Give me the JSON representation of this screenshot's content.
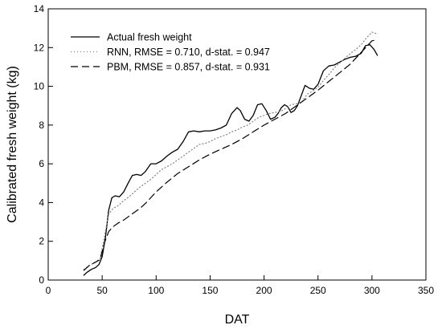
{
  "chart_data": {
    "type": "line",
    "title": "",
    "xlabel": "DAT",
    "ylabel": "Calibrated fresh weight (kg)",
    "xlim": [
      0,
      350
    ],
    "ylim": [
      0,
      14
    ],
    "xticks": [
      0,
      50,
      100,
      150,
      200,
      250,
      300,
      350
    ],
    "yticks": [
      0,
      2,
      4,
      6,
      8,
      10,
      12,
      14
    ],
    "grid": false,
    "legend_position": "top-left",
    "series": [
      {
        "name": "Actual fresh weight",
        "style": "solid",
        "color": "#000000",
        "x": [
          33,
          36,
          40,
          44,
          47,
          50,
          53,
          56,
          59,
          62,
          66,
          70,
          74,
          78,
          82,
          86,
          90,
          95,
          100,
          105,
          110,
          115,
          120,
          125,
          130,
          135,
          140,
          145,
          150,
          155,
          160,
          165,
          170,
          175,
          178,
          182,
          186,
          190,
          194,
          198,
          202,
          206,
          210,
          213,
          216,
          219,
          222,
          225,
          228,
          231,
          235,
          238,
          242,
          246,
          250,
          255,
          260,
          265,
          270,
          275,
          280,
          285,
          290,
          294,
          298,
          302,
          305
        ],
        "values": [
          0.25,
          0.4,
          0.55,
          0.65,
          0.8,
          1.2,
          2.2,
          3.6,
          4.25,
          4.35,
          4.3,
          4.55,
          5.0,
          5.4,
          5.45,
          5.4,
          5.6,
          6.0,
          6.0,
          6.15,
          6.4,
          6.6,
          6.75,
          7.15,
          7.65,
          7.7,
          7.65,
          7.7,
          7.7,
          7.75,
          7.85,
          8.0,
          8.6,
          8.9,
          8.75,
          8.3,
          8.2,
          8.5,
          9.05,
          9.1,
          8.75,
          8.3,
          8.4,
          8.6,
          8.9,
          9.05,
          8.95,
          8.65,
          8.75,
          9.0,
          9.6,
          10.05,
          9.9,
          9.85,
          10.1,
          10.8,
          11.05,
          11.1,
          11.25,
          11.4,
          11.5,
          11.55,
          11.7,
          12.1,
          12.15,
          11.9,
          11.6
        ]
      },
      {
        "name": "RNN, RMSE = 0.710, d-stat. = 0.947",
        "style": "dotted",
        "color": "#808080",
        "x": [
          33,
          38,
          43,
          48,
          52,
          56,
          60,
          65,
          70,
          75,
          80,
          85,
          90,
          95,
          100,
          105,
          110,
          115,
          120,
          125,
          130,
          135,
          140,
          145,
          150,
          155,
          160,
          165,
          170,
          175,
          180,
          185,
          190,
          195,
          200,
          205,
          210,
          215,
          220,
          225,
          230,
          235,
          240,
          245,
          250,
          255,
          260,
          265,
          270,
          275,
          280,
          285,
          290,
          295,
          300,
          305
        ],
        "values": [
          0.55,
          0.75,
          0.9,
          1.1,
          2.2,
          3.4,
          3.7,
          3.85,
          4.1,
          4.3,
          4.55,
          4.8,
          5.0,
          5.2,
          5.45,
          5.7,
          5.85,
          6.0,
          6.2,
          6.4,
          6.6,
          6.8,
          7.0,
          7.05,
          7.15,
          7.3,
          7.4,
          7.5,
          7.65,
          7.75,
          7.9,
          8.0,
          8.2,
          8.4,
          8.5,
          8.6,
          8.65,
          8.7,
          8.85,
          9.05,
          9.1,
          9.2,
          9.6,
          9.75,
          9.95,
          10.3,
          10.6,
          10.95,
          11.2,
          11.45,
          11.7,
          11.9,
          12.15,
          12.5,
          12.8,
          12.7
        ]
      },
      {
        "name": "PBM, RMSE = 0.857, d-stat. = 0.931",
        "style": "dashed",
        "color": "#000000",
        "x": [
          33,
          38,
          43,
          48,
          52,
          56,
          60,
          65,
          70,
          75,
          80,
          85,
          90,
          95,
          100,
          110,
          120,
          130,
          140,
          150,
          160,
          170,
          180,
          190,
          200,
          210,
          220,
          230,
          240,
          250,
          260,
          270,
          280,
          290,
          295,
          300,
          305
        ],
        "values": [
          0.5,
          0.75,
          0.9,
          1.05,
          1.9,
          2.5,
          2.75,
          2.95,
          3.1,
          3.3,
          3.5,
          3.7,
          3.95,
          4.25,
          4.55,
          5.05,
          5.5,
          5.85,
          6.2,
          6.5,
          6.75,
          7.0,
          7.3,
          7.65,
          8.0,
          8.3,
          8.6,
          9.0,
          9.4,
          9.8,
          10.25,
          10.7,
          11.15,
          11.75,
          12.05,
          12.35,
          12.4
        ]
      }
    ]
  }
}
